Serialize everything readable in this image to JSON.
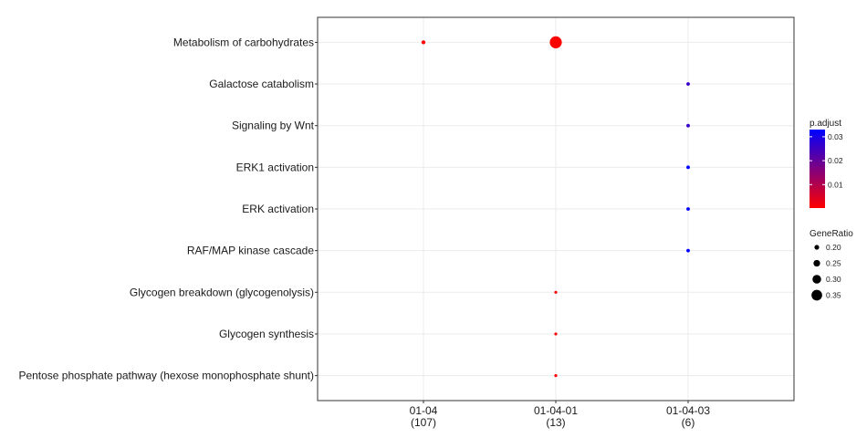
{
  "chart_data": {
    "type": "scatter",
    "title": "",
    "xlabel": "",
    "ylabel": "",
    "categories_x": [
      {
        "label": "01-04",
        "count": "(107)"
      },
      {
        "label": "01-04-01",
        "count": "(13)"
      },
      {
        "label": "01-04-03",
        "count": "(6)"
      }
    ],
    "categories_y": [
      "Metabolism of carbohydrates",
      "Galactose catabolism",
      "Signaling by Wnt",
      "ERK1 activation",
      "ERK activation",
      "RAF/MAP kinase cascade",
      "Glycogen breakdown (glycogenolysis)",
      "Glycogen synthesis",
      "Pentose phosphate pathway (hexose monophosphate shunt)"
    ],
    "points": [
      {
        "x": "01-04",
        "y": "Metabolism of carbohydrates",
        "gene_ratio": 0.18,
        "p_adjust": 0.0003
      },
      {
        "x": "01-04-01",
        "y": "Metabolism of carbohydrates",
        "gene_ratio": 0.385,
        "p_adjust": 0.0002
      },
      {
        "x": "01-04-03",
        "y": "Galactose catabolism",
        "gene_ratio": 0.17,
        "p_adjust": 0.026
      },
      {
        "x": "01-04-03",
        "y": "Signaling by Wnt",
        "gene_ratio": 0.17,
        "p_adjust": 0.026
      },
      {
        "x": "01-04-03",
        "y": "ERK1 activation",
        "gene_ratio": 0.17,
        "p_adjust": 0.033
      },
      {
        "x": "01-04-03",
        "y": "ERK activation",
        "gene_ratio": 0.17,
        "p_adjust": 0.033
      },
      {
        "x": "01-04-03",
        "y": "RAF/MAP kinase cascade",
        "gene_ratio": 0.17,
        "p_adjust": 0.033
      },
      {
        "x": "01-04-01",
        "y": "Glycogen breakdown (glycogenolysis)",
        "gene_ratio": 0.155,
        "p_adjust": 0.0004
      },
      {
        "x": "01-04-01",
        "y": "Glycogen synthesis",
        "gene_ratio": 0.155,
        "p_adjust": 0.0004
      },
      {
        "x": "01-04-01",
        "y": "Pentose phosphate pathway (hexose monophosphate shunt)",
        "gene_ratio": 0.155,
        "p_adjust": 0.0004
      }
    ],
    "color_legend": {
      "title": "p.adjust",
      "ticks": [
        "0.03",
        "0.02",
        "0.01"
      ],
      "tick_values": [
        0.03,
        0.02,
        0.01
      ],
      "range": [
        0.0002,
        0.033
      ],
      "low_color": "#ff0000",
      "high_color": "#0000ff"
    },
    "size_legend": {
      "title": "GeneRatio",
      "ticks": [
        "0.20",
        "0.25",
        "0.30",
        "0.35"
      ],
      "tick_values": [
        0.2,
        0.25,
        0.3,
        0.35
      ]
    },
    "grid": true,
    "legend_position": "right"
  }
}
